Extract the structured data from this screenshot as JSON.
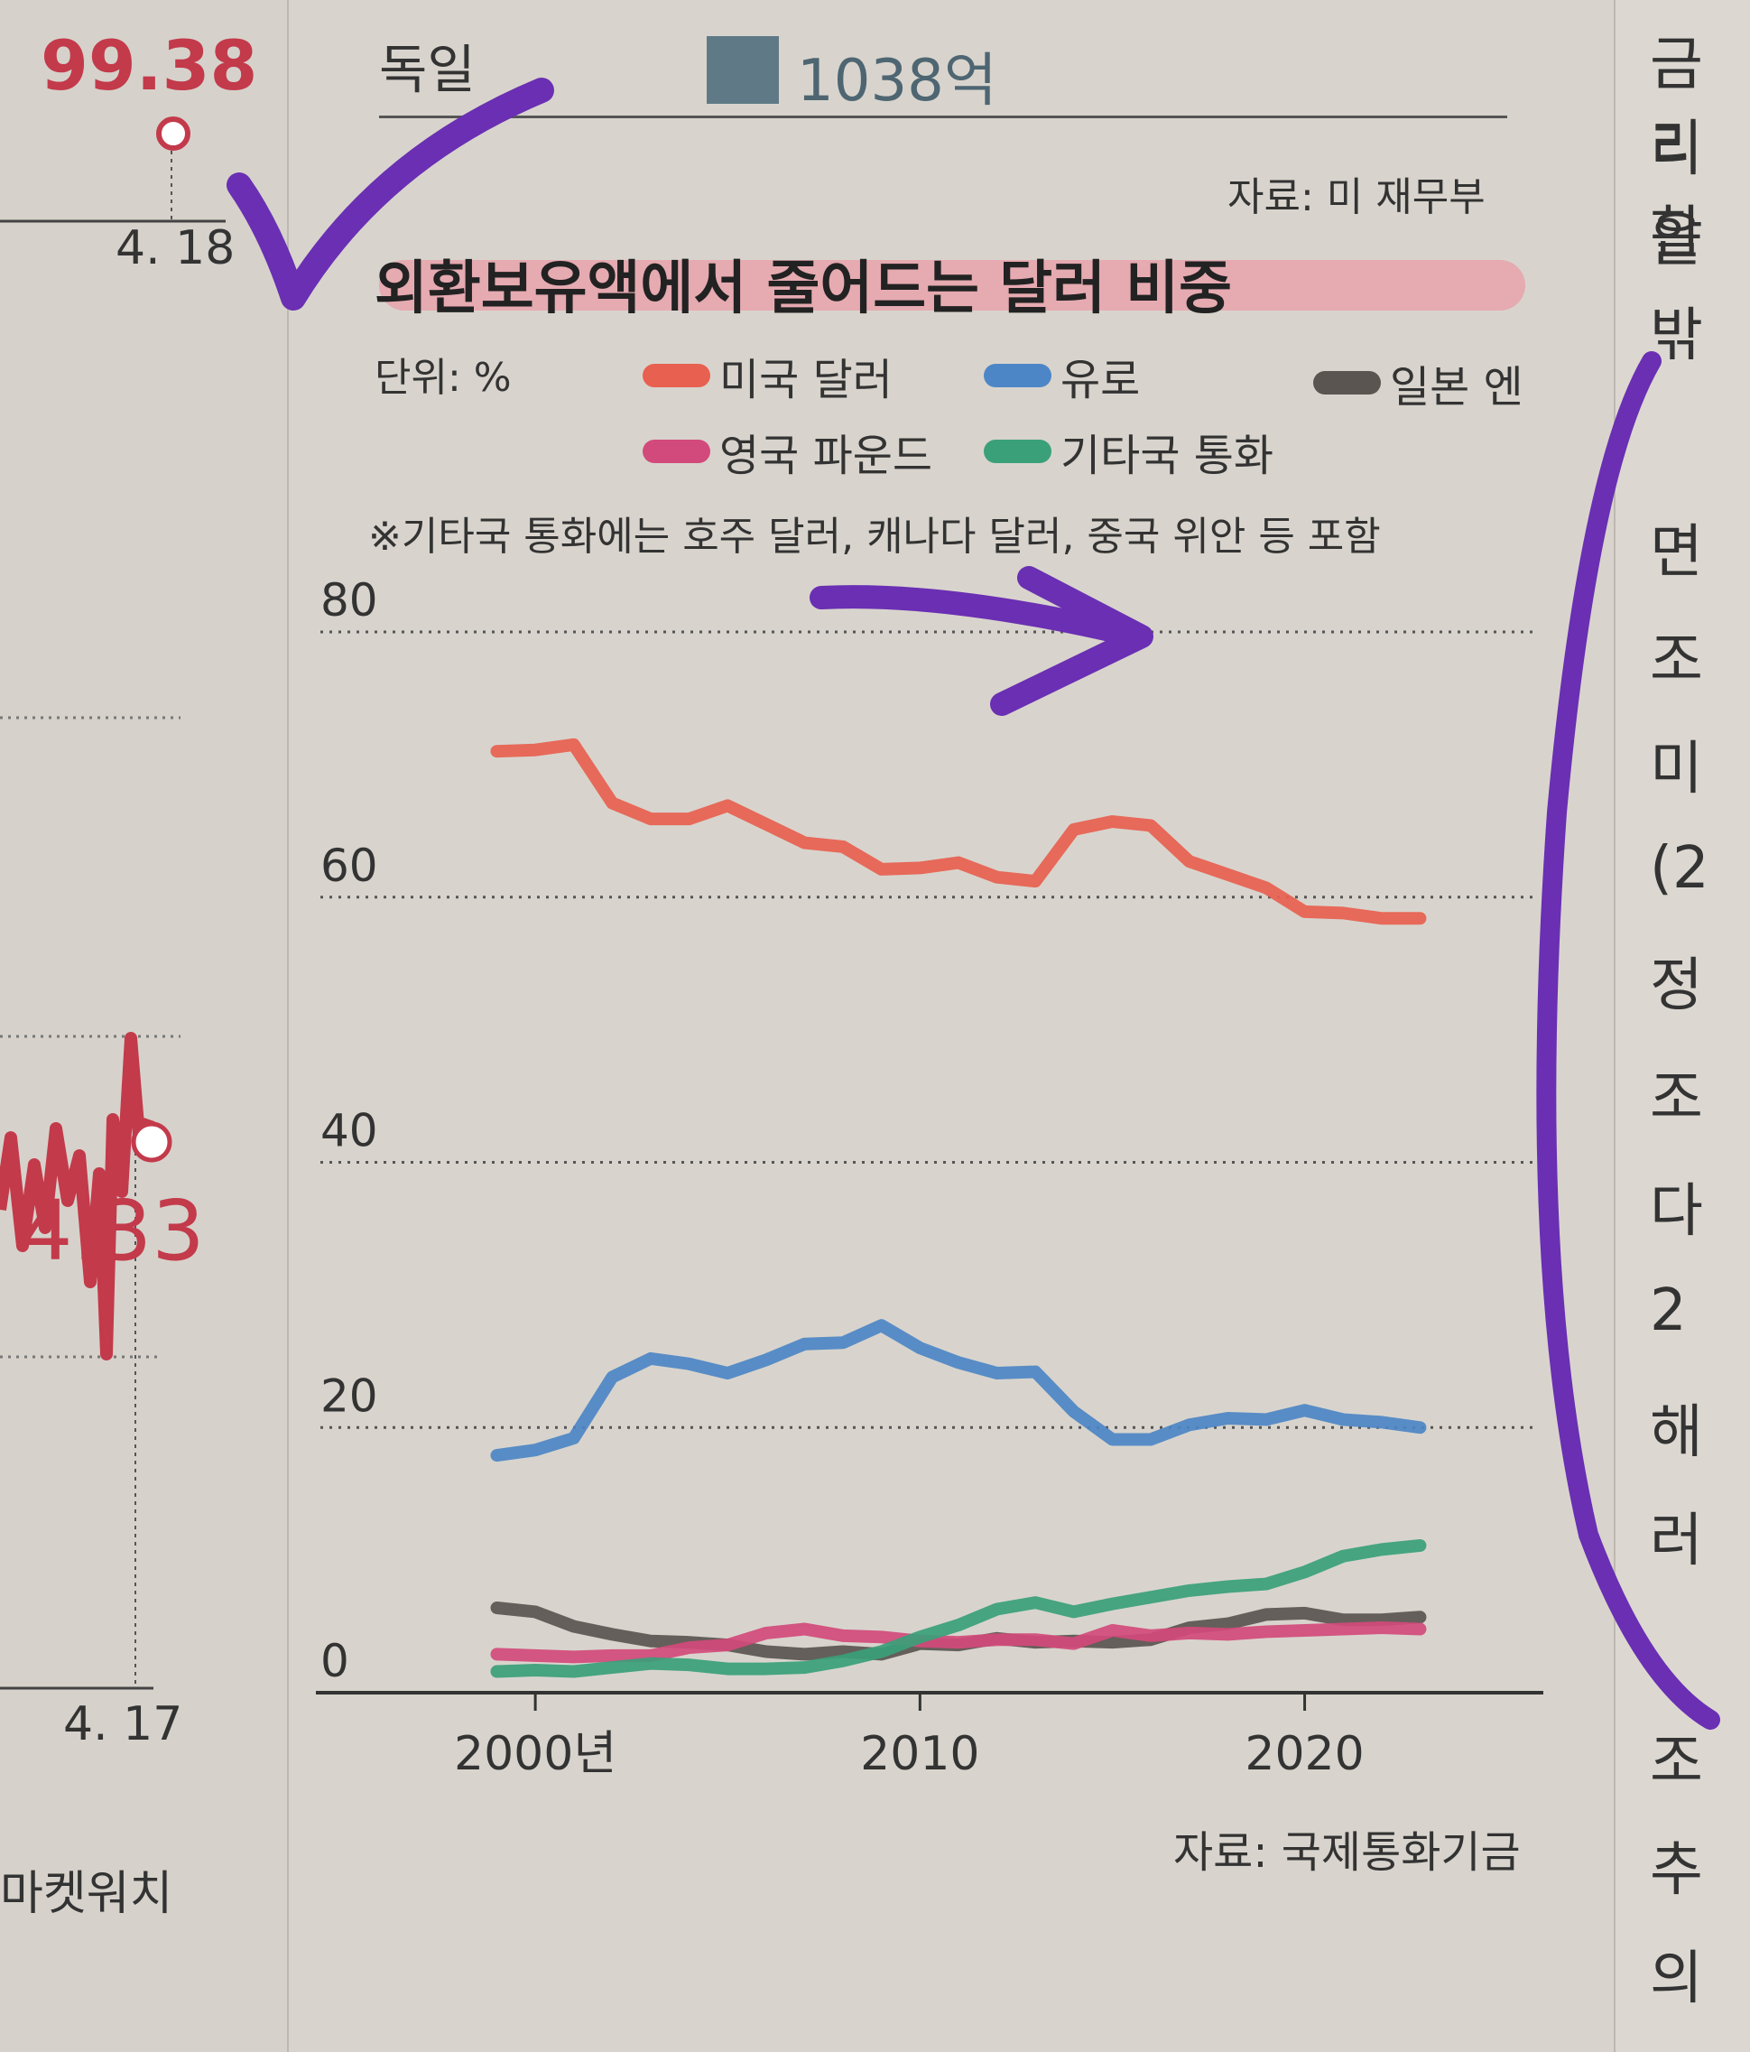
{
  "left_column": {
    "top_value": "99.38",
    "top_date": "4. 18",
    "mid_value": "4.33",
    "bottom_date": "4. 17",
    "source": "마켓워치"
  },
  "top_table": {
    "country": "독일",
    "value": "1038억",
    "source": "자료: 미 재무부"
  },
  "right_column": {
    "chars": [
      "금리",
      "리한",
      "을",
      "밖",
      "면",
      "조",
      "미",
      "(2",
      "정",
      "조",
      "다",
      "2",
      "해",
      "러",
      "조",
      "추",
      "의"
    ]
  },
  "colors": {
    "usd": "#e8604f",
    "eur": "#4d86c6",
    "jpy": "#5a5550",
    "gbp": "#d24a7b",
    "other": "#3aa07a",
    "marker_purple": "#6a2fb3",
    "highlight_pink": "#f2879a"
  },
  "chart_data": {
    "type": "line",
    "title": "외환보유액에서 줄어드는 달러 비중",
    "unit": "단위: %",
    "note": "※기타국 통화에는 호주 달러, 캐나다 달러, 중국 위안 등 포함",
    "source": "자료: 국제통화기금",
    "xlabel": "",
    "ylabel": "",
    "ylim": [
      0,
      80
    ],
    "yticks": [
      0,
      20,
      40,
      60,
      80
    ],
    "xticks": [
      {
        "x": 2000,
        "label": "2000년"
      },
      {
        "x": 2010,
        "label": "2010"
      },
      {
        "x": 2020,
        "label": "2020"
      }
    ],
    "xlim": [
      1995,
      2025.5
    ],
    "grid": true,
    "legend_position": "top",
    "x": [
      1999,
      2000,
      2001,
      2002,
      2003,
      2004,
      2005,
      2006,
      2007,
      2008,
      2009,
      2010,
      2011,
      2012,
      2013,
      2014,
      2015,
      2016,
      2017,
      2018,
      2019,
      2020,
      2021,
      2022,
      2023
    ],
    "series": [
      {
        "name": "미국 달러",
        "key": "usd",
        "values": [
          71.0,
          71.1,
          71.5,
          67.1,
          65.9,
          65.9,
          66.9,
          65.5,
          64.1,
          63.8,
          62.1,
          62.2,
          62.6,
          61.5,
          61.2,
          65.1,
          65.7,
          65.4,
          62.7,
          61.7,
          60.7,
          58.9,
          58.8,
          58.4,
          58.4
        ]
      },
      {
        "name": "유로",
        "key": "eur",
        "values": [
          17.9,
          18.3,
          19.2,
          23.8,
          25.2,
          24.8,
          24.1,
          25.1,
          26.3,
          26.4,
          27.7,
          26.0,
          24.9,
          24.1,
          24.2,
          21.2,
          19.1,
          19.1,
          20.2,
          20.7,
          20.6,
          21.3,
          20.6,
          20.4,
          20.0
        ]
      },
      {
        "name": "일본 엔",
        "key": "jpy",
        "values": [
          6.4,
          6.1,
          5.0,
          4.4,
          3.9,
          3.8,
          3.6,
          3.1,
          2.9,
          3.1,
          2.9,
          3.7,
          3.6,
          4.1,
          3.8,
          3.9,
          3.8,
          4.0,
          4.9,
          5.2,
          5.9,
          6.0,
          5.5,
          5.5,
          5.7
        ]
      },
      {
        "name": "영국 파운드",
        "key": "gbp",
        "values": [
          2.9,
          2.8,
          2.7,
          2.8,
          2.8,
          3.4,
          3.6,
          4.5,
          4.8,
          4.3,
          4.2,
          3.9,
          3.8,
          4.0,
          4.0,
          3.7,
          4.7,
          4.3,
          4.5,
          4.4,
          4.6,
          4.7,
          4.8,
          4.9,
          4.8
        ]
      },
      {
        "name": "기타국 통화",
        "key": "other",
        "values": [
          1.6,
          1.7,
          1.6,
          1.9,
          2.2,
          2.1,
          1.8,
          1.8,
          1.9,
          2.4,
          3.1,
          4.2,
          5.1,
          6.3,
          6.8,
          6.1,
          6.7,
          7.2,
          7.7,
          8.0,
          8.2,
          9.1,
          10.3,
          10.8,
          11.1
        ]
      }
    ]
  },
  "annotations": {
    "checkmark": "purple-checkmark",
    "arrow": "purple-arrow",
    "bracket": "purple-bracket"
  }
}
